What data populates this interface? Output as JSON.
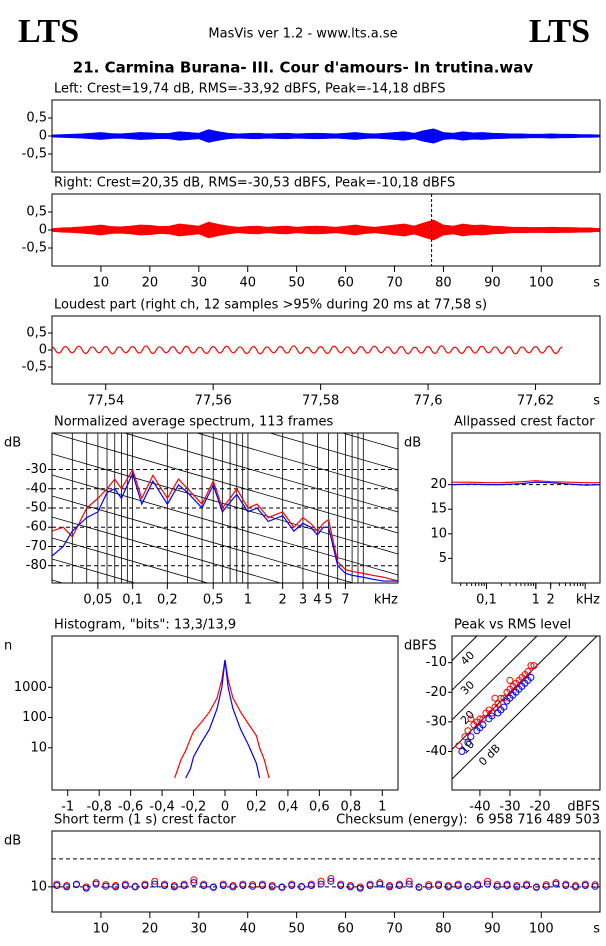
{
  "header": {
    "logo_left": "LTS",
    "logo_right": "LTS",
    "app": "MasVis ver 1.2 - www.lts.a.se",
    "file": "21. Carmina Burana- III. Cour d'amours- In trutina.wav"
  },
  "chart_data": [
    {
      "type": "area",
      "title": "Left: Crest=19,74 dB, RMS=-33,92 dBFS, Peak=-14,18 dBFS",
      "color": "#0000ff",
      "x": [
        0,
        2,
        4,
        6,
        8,
        10,
        12,
        14,
        16,
        18,
        20,
        22,
        24,
        26,
        28,
        30,
        32,
        34,
        36,
        38,
        40,
        42,
        44,
        46,
        48,
        50,
        52,
        54,
        56,
        58,
        60,
        62,
        64,
        66,
        68,
        70,
        72,
        74,
        76,
        78,
        80,
        82,
        84,
        86,
        88,
        90,
        92,
        94,
        96,
        98,
        100,
        102,
        104,
        106,
        108,
        110,
        112
      ],
      "values": [
        0.03,
        0.04,
        0.05,
        0.06,
        0.08,
        0.1,
        0.07,
        0.06,
        0.08,
        0.1,
        0.09,
        0.07,
        0.08,
        0.12,
        0.1,
        0.08,
        0.18,
        0.12,
        0.08,
        0.06,
        0.07,
        0.08,
        0.06,
        0.07,
        0.08,
        0.06,
        0.07,
        0.08,
        0.07,
        0.06,
        0.08,
        0.1,
        0.07,
        0.06,
        0.08,
        0.1,
        0.12,
        0.08,
        0.15,
        0.2,
        0.1,
        0.08,
        0.12,
        0.09,
        0.1,
        0.08,
        0.07,
        0.06,
        0.06,
        0.05,
        0.05,
        0.06,
        0.05,
        0.05,
        0.04,
        0.04,
        0.03
      ],
      "xlim": [
        0,
        112
      ],
      "ylim": [
        -1,
        1
      ],
      "yticks": [
        {
          "value": 0.5,
          "label": "0,5"
        },
        0,
        {
          "value": -0.5,
          "label": "-0,5"
        }
      ]
    },
    {
      "type": "area",
      "title": "Right: Crest=20,35 dB, RMS=-30,53 dBFS, Peak=-10,18 dBFS",
      "color": "#ff0000",
      "x": [
        0,
        2,
        4,
        6,
        8,
        10,
        12,
        14,
        16,
        18,
        20,
        22,
        24,
        26,
        28,
        30,
        32,
        34,
        36,
        38,
        40,
        42,
        44,
        46,
        48,
        50,
        52,
        54,
        56,
        58,
        60,
        62,
        64,
        66,
        68,
        70,
        72,
        74,
        76,
        78,
        80,
        82,
        84,
        86,
        88,
        90,
        92,
        94,
        96,
        98,
        100,
        102,
        104,
        106,
        108,
        110,
        112
      ],
      "values": [
        0.04,
        0.06,
        0.07,
        0.09,
        0.11,
        0.14,
        0.1,
        0.09,
        0.11,
        0.14,
        0.13,
        0.1,
        0.11,
        0.17,
        0.14,
        0.11,
        0.22,
        0.16,
        0.11,
        0.08,
        0.1,
        0.11,
        0.08,
        0.1,
        0.11,
        0.08,
        0.1,
        0.11,
        0.1,
        0.08,
        0.11,
        0.14,
        0.1,
        0.08,
        0.11,
        0.14,
        0.17,
        0.11,
        0.2,
        0.28,
        0.14,
        0.11,
        0.17,
        0.13,
        0.14,
        0.11,
        0.1,
        0.08,
        0.08,
        0.07,
        0.07,
        0.08,
        0.07,
        0.07,
        0.06,
        0.06,
        0.04
      ],
      "xlim": [
        0,
        112
      ],
      "ylim": [
        -1,
        1
      ],
      "yticks": [
        {
          "value": 0.5,
          "label": "0,5"
        },
        0,
        {
          "value": -0.5,
          "label": "-0,5"
        }
      ],
      "xticks": [
        10,
        20,
        30,
        40,
        50,
        60,
        70,
        80,
        90,
        100
      ],
      "x_unit": "s",
      "marker": 77.58
    },
    {
      "type": "line",
      "title": "Loudest part (right ch, 12 samples >95% during 20 ms at 77,58 s)",
      "color": "#ff0000",
      "x": [
        77.53,
        77.53125,
        77.5325,
        77.53375,
        77.535,
        77.53625,
        77.5375,
        77.53875,
        77.54,
        77.54125,
        77.5425,
        77.54375,
        77.545,
        77.54625,
        77.5475,
        77.54875,
        77.55,
        77.55125,
        77.5525,
        77.55375,
        77.555,
        77.55625,
        77.5575,
        77.55875,
        77.56,
        77.56125,
        77.5625,
        77.56375,
        77.565,
        77.56625,
        77.5675,
        77.56875,
        77.57,
        77.57125,
        77.5725,
        77.57375,
        77.575,
        77.57625,
        77.5775,
        77.57875,
        77.58,
        77.58125,
        77.5825,
        77.58375,
        77.585,
        77.58625,
        77.5875,
        77.58875,
        77.59,
        77.59125,
        77.5925,
        77.59375,
        77.595,
        77.59625,
        77.5975,
        77.59875,
        77.6,
        77.60125,
        77.6025,
        77.60375,
        77.605,
        77.60625,
        77.6075,
        77.60875,
        77.61,
        77.61125,
        77.6125,
        77.61375,
        77.615,
        77.61625,
        77.6175,
        77.61875,
        77.62,
        77.62125,
        77.6225,
        77.62375,
        77.625
      ],
      "values": [
        0.08,
        -0.09,
        0.1,
        -0.08,
        0.11,
        -0.1,
        0.09,
        -0.08,
        0.1,
        -0.11,
        0.09,
        -0.08,
        0.1,
        -0.09,
        0.12,
        -0.1,
        0.09,
        -0.08,
        0.1,
        -0.1,
        0.11,
        -0.09,
        0.08,
        -0.1,
        0.1,
        -0.09,
        0.11,
        -0.08,
        0.09,
        -0.1,
        0.1,
        -0.11,
        0.09,
        -0.08,
        0.1,
        -0.09,
        0.12,
        -0.1,
        0.08,
        -0.09,
        0.1,
        -0.1,
        0.11,
        -0.08,
        0.09,
        -0.1,
        0.1,
        -0.09,
        0.11,
        -0.08,
        0.09,
        -0.1,
        0.1,
        -0.11,
        0.08,
        -0.09,
        0.1,
        -0.1,
        0.12,
        -0.09,
        0.08,
        -0.1,
        0.1,
        -0.09,
        0.11,
        -0.08,
        0.09,
        -0.1,
        0.1,
        -0.11,
        0.09,
        -0.08,
        0.1,
        -0.09,
        0.11,
        -0.1,
        0.09
      ],
      "xlim": [
        77.53,
        77.632
      ],
      "ylim": [
        -1,
        1
      ],
      "yticks": [
        {
          "value": 0.5,
          "label": "0,5"
        },
        0,
        {
          "value": -0.5,
          "label": "-0,5"
        }
      ],
      "xticks": [
        {
          "value": 77.54,
          "label": "77,54"
        },
        {
          "value": 77.56,
          "label": "77,56"
        },
        {
          "value": 77.58,
          "label": "77,58"
        },
        {
          "value": 77.6,
          "label": "77,6"
        },
        {
          "value": 77.62,
          "label": "77,62"
        }
      ],
      "x_unit": "s"
    },
    {
      "type": "line",
      "title": "Normalized average spectrum, 113 frames",
      "xscale": "log",
      "grid": true,
      "x": [
        0.02,
        0.025,
        0.03,
        0.04,
        0.05,
        0.06,
        0.07,
        0.08,
        0.1,
        0.12,
        0.15,
        0.2,
        0.25,
        0.3,
        0.4,
        0.5,
        0.6,
        0.7,
        0.8,
        1,
        1.2,
        1.5,
        2,
        2.5,
        3,
        3.5,
        4,
        4.5,
        5,
        6,
        7,
        8,
        10,
        12,
        15,
        20
      ],
      "series": [
        {
          "color": "#ff0000",
          "values": [
            -62,
            -60,
            -65,
            -50,
            -45,
            -40,
            -35,
            -40,
            -30,
            -45,
            -33,
            -45,
            -35,
            -40,
            -48,
            -36,
            -50,
            -45,
            -40,
            -50,
            -48,
            -55,
            -52,
            -60,
            -55,
            -58,
            -62,
            -58,
            -56,
            -78,
            -82,
            -83,
            -84,
            -85,
            -86,
            -88
          ]
        },
        {
          "color": "#0000ff",
          "values": [
            -75,
            -70,
            -62,
            -55,
            -52,
            -42,
            -40,
            -45,
            -32,
            -48,
            -36,
            -48,
            -38,
            -42,
            -50,
            -38,
            -52,
            -47,
            -43,
            -52,
            -50,
            -57,
            -54,
            -62,
            -58,
            -60,
            -64,
            -60,
            -60,
            -80,
            -84,
            -85,
            -86,
            -87,
            -88,
            -88
          ]
        }
      ],
      "xlim": [
        0.02,
        20
      ],
      "ylim": [
        -89,
        -11
      ],
      "yticks": [
        -30,
        -40,
        -50,
        -60,
        -70,
        -80
      ],
      "xticks": [
        {
          "value": 0.05,
          "label": "0,05"
        },
        {
          "value": 0.1,
          "label": "0,1"
        },
        {
          "value": 0.2,
          "label": "0,2"
        },
        {
          "value": 0.5,
          "label": "0,5"
        },
        1,
        2,
        3,
        4,
        5,
        7
      ],
      "x_unit": "kHz",
      "y_unit": "dB"
    },
    {
      "type": "line",
      "title": "Allpassed crest factor",
      "xscale": "log",
      "x": [
        0.02,
        0.05,
        0.1,
        0.2,
        0.5,
        1,
        2,
        5,
        10,
        20
      ],
      "series": [
        {
          "color": "#ff0000",
          "values": [
            20.5,
            20.5,
            20.4,
            20.4,
            20.6,
            20.8,
            20.6,
            20.5,
            20.4,
            20.4
          ]
        },
        {
          "color": "#0000ff",
          "values": [
            20,
            20.1,
            20,
            20,
            20.2,
            20.5,
            20.4,
            20.1,
            19.9,
            20
          ]
        }
      ],
      "xlim": [
        0.02,
        20
      ],
      "ylim": [
        0,
        30.5
      ],
      "yticks": [
        5,
        10,
        15,
        20
      ],
      "ref_line": 20,
      "xticks": [
        {
          "value": 0.1,
          "label": "0,1"
        },
        1,
        2
      ],
      "x_unit": "kHz",
      "y_unit": "dB"
    },
    {
      "type": "line",
      "title": "Histogram, \"bits\": 13,3/13,9",
      "yscale": "log",
      "x": [
        -0.32,
        -0.3,
        -0.28,
        -0.25,
        -0.22,
        -0.2,
        -0.15,
        -0.1,
        -0.05,
        -0.02,
        0,
        0.02,
        0.05,
        0.1,
        0.15,
        0.2,
        0.22,
        0.25,
        0.28,
        0.3
      ],
      "series": [
        {
          "color": "#ff0000",
          "values": [
            1,
            2,
            4,
            8,
            20,
            35,
            70,
            150,
            450,
            1800,
            8000,
            1800,
            450,
            150,
            60,
            25,
            10,
            4,
            1,
            null
          ]
        },
        {
          "color": "#0000ff",
          "values": [
            null,
            null,
            null,
            1,
            2,
            5,
            15,
            40,
            200,
            1000,
            8000,
            1000,
            200,
            40,
            12,
            3,
            1,
            null,
            null,
            null
          ]
        }
      ],
      "xlim": [
        -1.1,
        1.1
      ],
      "ylim": [
        0.4,
        50000
      ],
      "yticks": [
        10,
        100,
        1000
      ],
      "xticks": [
        -1,
        {
          "value": -0.8,
          "label": "-0,8"
        },
        {
          "value": -0.6,
          "label": "-0,6"
        },
        {
          "value": -0.4,
          "label": "-0,4"
        },
        {
          "value": -0.2,
          "label": "-0,2"
        },
        0,
        {
          "value": 0.2,
          "label": "0,2"
        },
        {
          "value": 0.4,
          "label": "0,4"
        },
        {
          "value": 0.6,
          "label": "0,6"
        },
        {
          "value": 0.8,
          "label": "0,8"
        },
        1
      ],
      "y_unit": "n"
    },
    {
      "type": "scatter",
      "title": "Peak vs RMS level",
      "series": [
        {
          "color": "#ff0000",
          "x": [
            -47,
            -45,
            -44,
            -42,
            -41,
            -40,
            -39,
            -38,
            -37,
            -36,
            -35,
            -34,
            -33,
            -32,
            -31,
            -30,
            -29,
            -28,
            -27,
            -26,
            -25,
            -24,
            -23,
            -22,
            -43,
            -35,
            -30
          ],
          "values": [
            -38,
            -35,
            -33,
            -31,
            -30,
            -29,
            -29,
            -27,
            -26,
            -27,
            -25,
            -24,
            -22,
            -22,
            -20,
            -19,
            -18,
            -17,
            -16,
            -15,
            -14,
            -13,
            -11,
            -11,
            -29,
            -22,
            -16
          ]
        },
        {
          "color": "#0000ff",
          "x": [
            -46,
            -44,
            -43,
            -41,
            -40,
            -39,
            -37,
            -36,
            -34,
            -33,
            -32,
            -31,
            -30,
            -29,
            -28,
            -27,
            -26,
            -25,
            -24,
            -23
          ],
          "values": [
            -40,
            -37,
            -35,
            -33,
            -32,
            -31,
            -29,
            -28,
            -27,
            -26,
            -25,
            -23,
            -22,
            -21,
            -20,
            -19,
            -18,
            -17,
            -16,
            -15
          ]
        }
      ],
      "xlim": [
        -49.3,
        0
      ],
      "ylim": [
        -53,
        -1
      ],
      "xticks": [
        -40,
        -30,
        -20
      ],
      "yticks": [
        -10,
        -20,
        -30,
        -40
      ],
      "x_unit": "dBFS",
      "y_unit": "dBFS",
      "diagonals": [
        {
          "value": 0,
          "label": "0 dB"
        },
        10,
        20,
        30,
        40
      ]
    },
    {
      "type": "scatter",
      "title": "Short term (1 s) crest factor",
      "annotation": "Checksum (energy):  6 958 716 489 503",
      "x": [
        1,
        3,
        5,
        7,
        9,
        11,
        13,
        15,
        17,
        19,
        21,
        23,
        25,
        27,
        29,
        31,
        33,
        35,
        37,
        39,
        41,
        43,
        45,
        47,
        49,
        51,
        53,
        55,
        57,
        59,
        61,
        63,
        65,
        67,
        69,
        71,
        73,
        75,
        77,
        79,
        81,
        83,
        85,
        87,
        89,
        91,
        93,
        95,
        97,
        99,
        101,
        103,
        105,
        107,
        109,
        111
      ],
      "series": [
        {
          "color": "#ff0000",
          "values": [
            11,
            10.5,
            11,
            10,
            11.5,
            10.8,
            10.5,
            11,
            10.2,
            11,
            12,
            11,
            10.5,
            11,
            12.5,
            11,
            10,
            11,
            10.5,
            11,
            10.8,
            11,
            10.5,
            10,
            11,
            10.2,
            11,
            12,
            13,
            11,
            10.5,
            10,
            11,
            11.5,
            10.5,
            11,
            12,
            10,
            10.8,
            11,
            10.5,
            11,
            10.2,
            11,
            12,
            10.8,
            11,
            10.5,
            11,
            10,
            10.8,
            11.5,
            11,
            10.5,
            11,
            10.8
          ]
        },
        {
          "color": "#0000ff",
          "values": [
            10.5,
            10,
            10.8,
            9.5,
            11,
            10.2,
            10,
            10.5,
            10,
            10.5,
            11,
            10.5,
            10,
            10.5,
            11.5,
            10.5,
            9.8,
            10.5,
            10,
            10.5,
            10.2,
            10.5,
            10,
            9.8,
            10.5,
            10,
            10.5,
            11,
            12,
            10.5,
            10,
            9.5,
            10.5,
            11,
            10,
            10.5,
            11,
            9.8,
            10.2,
            10.5,
            10,
            10.5,
            10,
            10.5,
            11,
            10.2,
            10.5,
            10,
            10.5,
            9.8,
            10.2,
            11,
            10.5,
            10,
            10.5,
            10.2
          ]
        }
      ],
      "xlim": [
        0,
        112
      ],
      "ylim": [
        1,
        30
      ],
      "yticks": [
        10
      ],
      "dashed_lines": [
        10,
        20
      ],
      "xticks": [
        10,
        20,
        30,
        40,
        50,
        60,
        70,
        80,
        90,
        100
      ],
      "x_unit": "s",
      "y_unit": "dB"
    }
  ]
}
